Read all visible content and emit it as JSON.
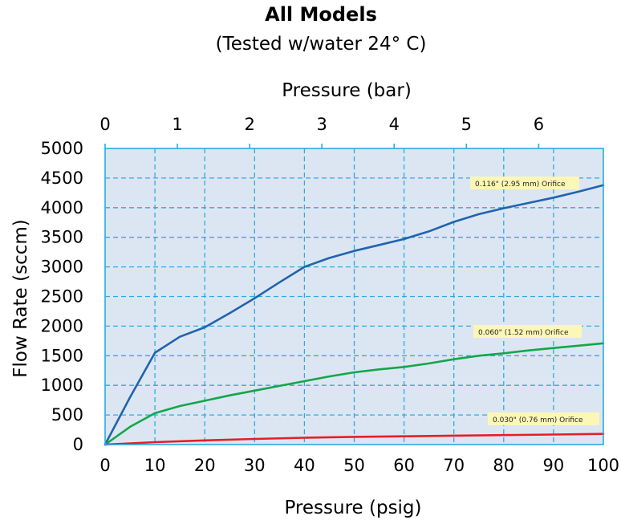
{
  "chart_data": {
    "type": "line",
    "title": "All Models",
    "subtitle": "(Tested w/water 24° C)",
    "xlabel": "Pressure (psig)",
    "x2label": "Pressure (bar)",
    "ylabel": "Flow Rate (sccm)",
    "xlim": [
      0,
      100
    ],
    "ylim": [
      0,
      5000
    ],
    "x2lim": [
      0,
      6.895
    ],
    "xticks": [
      0,
      10,
      20,
      30,
      40,
      50,
      60,
      70,
      80,
      90,
      100
    ],
    "yticks": [
      0,
      500,
      1000,
      1500,
      2000,
      2500,
      3000,
      3500,
      4000,
      4500,
      5000
    ],
    "x2ticks": [
      0,
      1,
      2,
      3,
      4,
      5,
      6
    ],
    "grid": true,
    "series": [
      {
        "name": "0.116\" (2.95 mm) Orifice",
        "color": "#1f64ad",
        "x": [
          0,
          5,
          10,
          15,
          20,
          25,
          30,
          35,
          40,
          45,
          50,
          55,
          60,
          65,
          70,
          75,
          80,
          85,
          90,
          95,
          100
        ],
        "y": [
          0,
          800,
          1550,
          1820,
          1980,
          2220,
          2470,
          2740,
          3000,
          3150,
          3270,
          3370,
          3470,
          3600,
          3760,
          3890,
          3990,
          4080,
          4170,
          4270,
          4380
        ]
      },
      {
        "name": "0.060\" (1.52 mm) Orifice",
        "color": "#14a64a",
        "x": [
          0,
          5,
          10,
          15,
          20,
          25,
          30,
          35,
          40,
          45,
          50,
          55,
          60,
          65,
          70,
          75,
          80,
          85,
          90,
          95,
          100
        ],
        "y": [
          0,
          300,
          530,
          650,
          740,
          830,
          910,
          990,
          1070,
          1150,
          1220,
          1270,
          1310,
          1370,
          1440,
          1500,
          1540,
          1590,
          1630,
          1670,
          1710
        ]
      },
      {
        "name": "0.030\" (0.76 mm) Orifice",
        "color": "#e41f26",
        "x": [
          0,
          10,
          20,
          30,
          40,
          50,
          60,
          70,
          80,
          90,
          100
        ],
        "y": [
          0,
          40,
          70,
          95,
          115,
          130,
          140,
          150,
          160,
          170,
          180
        ]
      }
    ]
  },
  "style": {
    "plot_bg": "#dce6f2",
    "axis_color": "#29abe2",
    "grid_color": "#29abe2",
    "label_bg": "#fcf7b6"
  }
}
